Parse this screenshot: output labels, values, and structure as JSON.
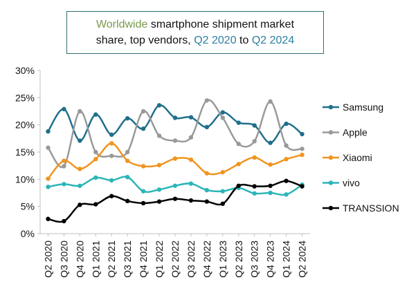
{
  "title": {
    "part1": "Worldwide",
    "part2": " smartphone shipment market",
    "part3": "share, top vendors, ",
    "part4": "Q2 2020",
    "part5": " to ",
    "part6": "Q2 2024"
  },
  "chart_data": {
    "type": "line",
    "title": "Worldwide smartphone shipment market share, top vendors, Q2 2020 to Q2 2024",
    "xlabel": "",
    "ylabel": "",
    "ylim": [
      0,
      30
    ],
    "yticks": [
      "0%",
      "5%",
      "10%",
      "15%",
      "20%",
      "25%",
      "30%"
    ],
    "categories": [
      "Q2 2020",
      "Q3 2020",
      "Q4 2020",
      "Q1 2021",
      "Q2 2021",
      "Q3 2021",
      "Q4 2021",
      "Q1 2022",
      "Q2 2022",
      "Q3 2022",
      "Q4 2022",
      "Q1 2023",
      "Q2 2023",
      "Q3 2023",
      "Q4 2023",
      "Q1 2024",
      "Q2 2024"
    ],
    "grid": false,
    "legend_position": "right",
    "series": [
      {
        "name": "Samsung",
        "color": "#1f6f8b",
        "values": [
          18.8,
          22.9,
          17.1,
          21.9,
          18.2,
          21.2,
          19.3,
          23.6,
          21.3,
          21.4,
          19.6,
          22.3,
          20.4,
          19.9,
          16.7,
          20.2,
          18.3
        ]
      },
      {
        "name": "Apple",
        "color": "#999999",
        "values": [
          15.8,
          12.4,
          22.5,
          15.0,
          14.3,
          15.0,
          22.5,
          18.0,
          17.1,
          17.7,
          24.5,
          21.3,
          16.5,
          17.0,
          24.3,
          16.2,
          15.6
        ]
      },
      {
        "name": "Xiaomi",
        "color": "#f0941f",
        "values": [
          10.1,
          13.4,
          11.9,
          13.7,
          16.6,
          13.4,
          12.4,
          12.6,
          13.8,
          13.6,
          11.1,
          11.3,
          12.8,
          14.0,
          12.7,
          13.7,
          14.5
        ]
      },
      {
        "name": "vivo",
        "color": "#2bb5b8",
        "values": [
          8.6,
          9.1,
          8.8,
          10.3,
          9.8,
          10.4,
          7.8,
          8.1,
          8.8,
          9.2,
          8.0,
          7.8,
          8.4,
          7.4,
          7.5,
          7.2,
          9.0
        ]
      },
      {
        "name": "TRANSSION",
        "color": "#000000",
        "values": [
          2.7,
          2.3,
          5.3,
          5.4,
          6.9,
          6.0,
          5.6,
          5.9,
          6.4,
          6.1,
          5.9,
          5.5,
          8.8,
          8.7,
          8.8,
          9.7,
          8.7
        ]
      }
    ]
  }
}
